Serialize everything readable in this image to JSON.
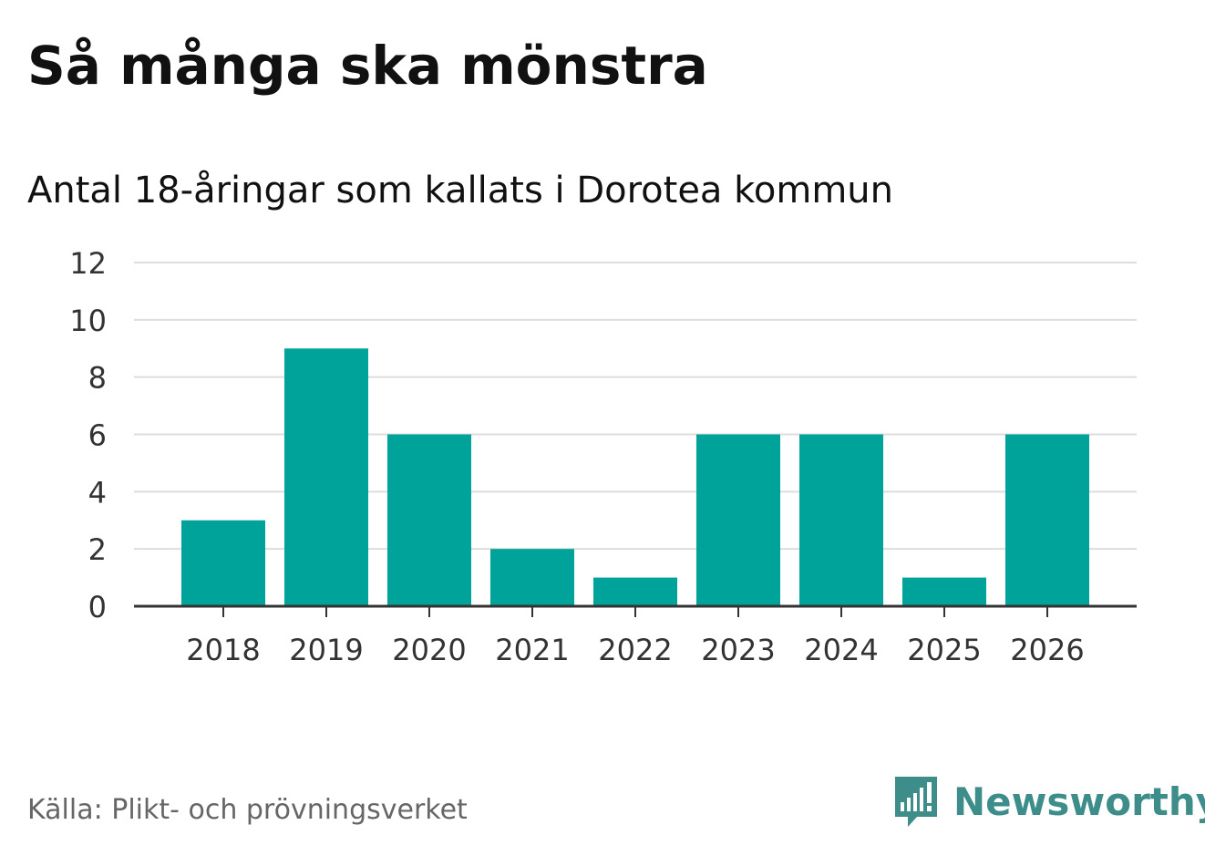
{
  "chart_data": {
    "type": "bar",
    "title": "Så många ska mönstra",
    "subtitle": "Antal 18-åringar som kallats i Dorotea kommun",
    "categories": [
      "2018",
      "2019",
      "2020",
      "2021",
      "2022",
      "2023",
      "2024",
      "2025",
      "2026"
    ],
    "values": [
      3,
      9,
      6,
      2,
      1,
      6,
      6,
      1,
      6
    ],
    "ylim": [
      0,
      12
    ],
    "yticks": [
      "0",
      "2",
      "4",
      "6",
      "8",
      "10",
      "12"
    ],
    "grid": true,
    "bar_color": "#00a39a",
    "grid_color": "#dddddd",
    "axis_color": "#333333"
  },
  "footer": {
    "source": "Källa: Plikt- och prövningsverket",
    "brand": "Newsworthy",
    "brand_color": "#3d8d8a",
    "logo_icon": "newsworthy-logo-icon"
  }
}
